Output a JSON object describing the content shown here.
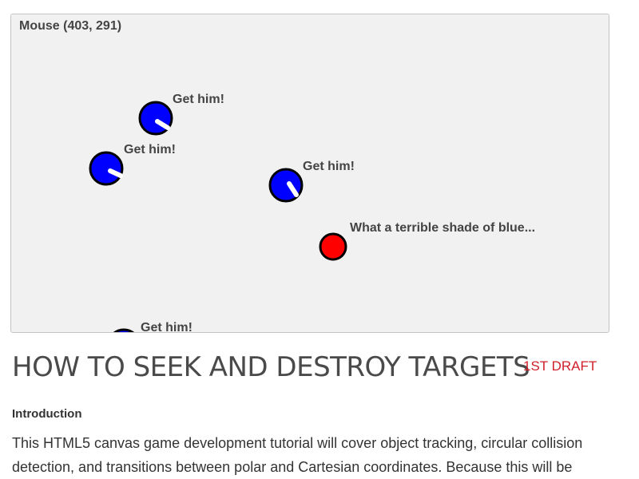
{
  "canvas": {
    "mouse_label": "Mouse (403, 291)",
    "colors": {
      "background": "#f1f1f1",
      "seeker": "#0000ff",
      "target": "#ff0000",
      "outline": "#000000",
      "text": "#444444"
    },
    "seekers": [
      {
        "name": "seeker-1",
        "speech": "Get him!"
      },
      {
        "name": "seeker-2",
        "speech": "Get him!"
      },
      {
        "name": "seeker-3",
        "speech": "Get him!"
      },
      {
        "name": "seeker-4",
        "speech": "Get him!"
      }
    ],
    "target": {
      "speech": "What a terrible shade of blue..."
    }
  },
  "article": {
    "title": "HOW TO SEEK AND DESTROY TARGETS",
    "badge": "1ST DRAFT",
    "section_heading": "Introduction",
    "intro_text": "This HTML5 canvas game development tutorial will cover object tracking, circular collision detection, and transitions between polar and Cartesian coordinates. Because this will be"
  }
}
